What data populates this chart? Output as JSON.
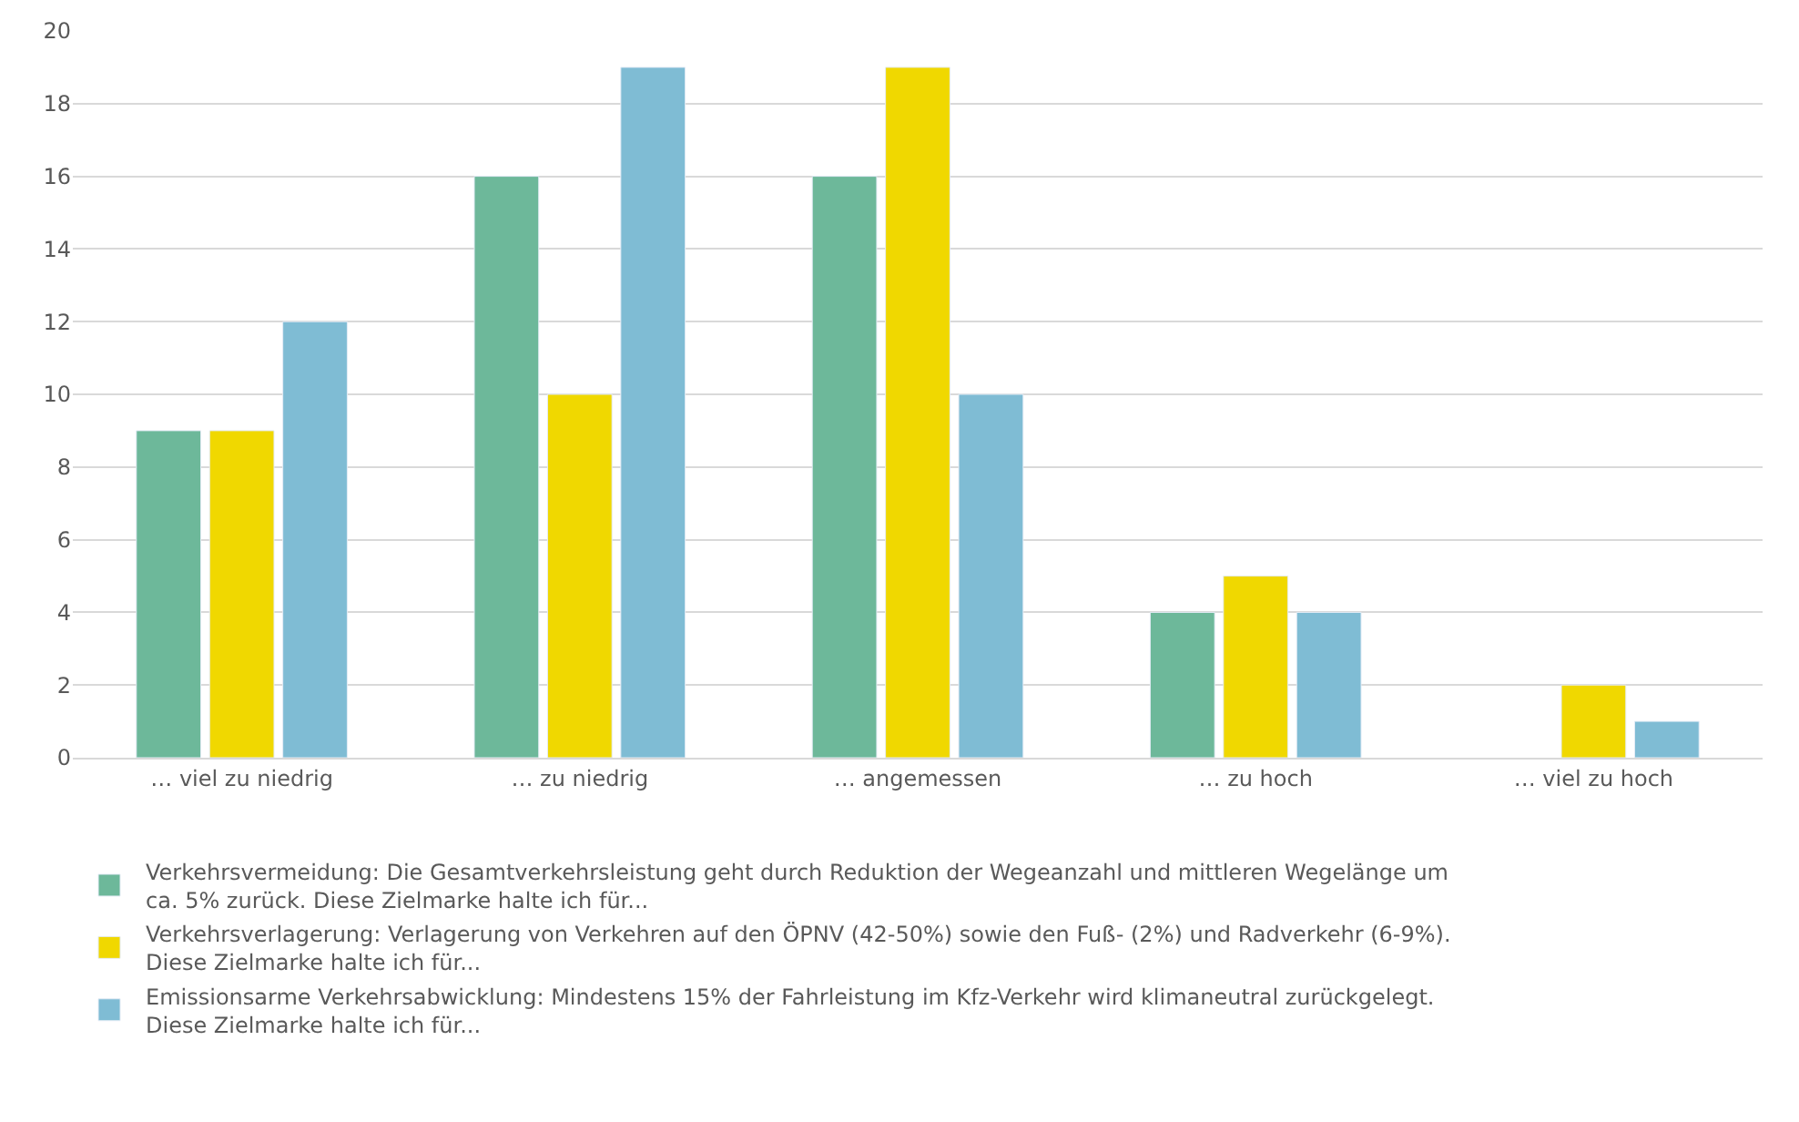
{
  "chart_data": {
    "type": "bar",
    "categories": [
      "… viel zu niedrig",
      "… zu niedrig",
      "… angemessen",
      "… zu hoch",
      "… viel zu hoch"
    ],
    "series": [
      {
        "name": "Verkehrsvermeidung: Die Gesamtverkehrsleistung geht durch Reduktion der Wegeanzahl und mittleren Wegelänge um ca. 5% zurück. Diese Zielmarke halte ich für...",
        "color": "#6db89a",
        "values": [
          9,
          16,
          16,
          4,
          null
        ]
      },
      {
        "name": "Verkehrsverlagerung: Verlagerung von Verkehren auf den ÖPNV (42-50%) sowie den Fuß- (2%) und Radverkehr (6-9%). Diese Zielmarke halte ich für...",
        "color": "#f0d800",
        "values": [
          9,
          10,
          19,
          5,
          2
        ]
      },
      {
        "name": "Emissionsarme Verkehrsabwicklung: Mindestens 15% der Fahrleistung im Kfz-Verkehr wird klimaneutral zurückgelegt. Diese Zielmarke halte ich für...",
        "color": "#7fbcd4",
        "values": [
          12,
          19,
          10,
          4,
          1
        ]
      }
    ],
    "ylim": [
      0,
      20
    ],
    "yticks": [
      0,
      2,
      4,
      6,
      8,
      10,
      12,
      14,
      16,
      18,
      20
    ],
    "grid": "y",
    "legend": "bottom"
  }
}
